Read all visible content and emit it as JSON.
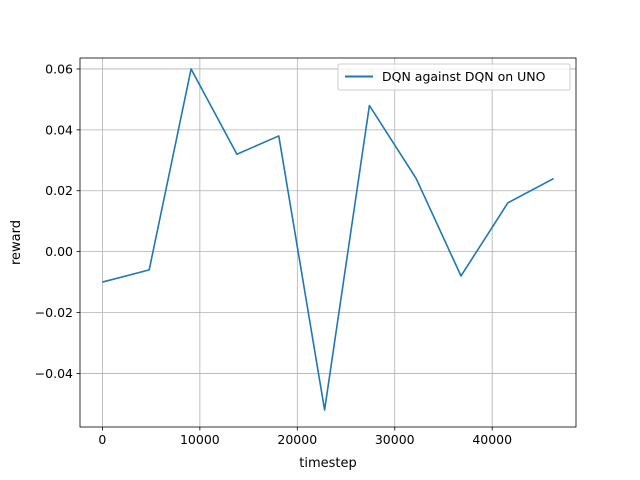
{
  "chart_data": {
    "type": "line",
    "title": "",
    "xlabel": "timestep",
    "ylabel": "reward",
    "xlim": [
      -2300,
      48600
    ],
    "ylim": [
      -0.0576,
      0.0636
    ],
    "xticks": [
      0,
      10000,
      20000,
      30000,
      40000
    ],
    "yticks": [
      -0.04,
      -0.02,
      0.0,
      0.02,
      0.04,
      0.06
    ],
    "xtick_labels": [
      "0",
      "10000",
      "20000",
      "30000",
      "40000"
    ],
    "ytick_labels": [
      "−0.04",
      "−0.02",
      "0.00",
      "0.02",
      "0.04",
      "0.06"
    ],
    "grid": true,
    "legend_position": "top-right",
    "series": [
      {
        "name": "DQN against DQN on UNO",
        "color": "#1f77b4",
        "x": [
          0,
          4800,
          9100,
          13800,
          18100,
          22800,
          27400,
          32200,
          36800,
          41600,
          46300
        ],
        "y": [
          -0.01,
          -0.006,
          0.06,
          0.032,
          0.038,
          -0.052,
          0.048,
          0.024,
          -0.008,
          0.016,
          0.024
        ]
      }
    ]
  }
}
